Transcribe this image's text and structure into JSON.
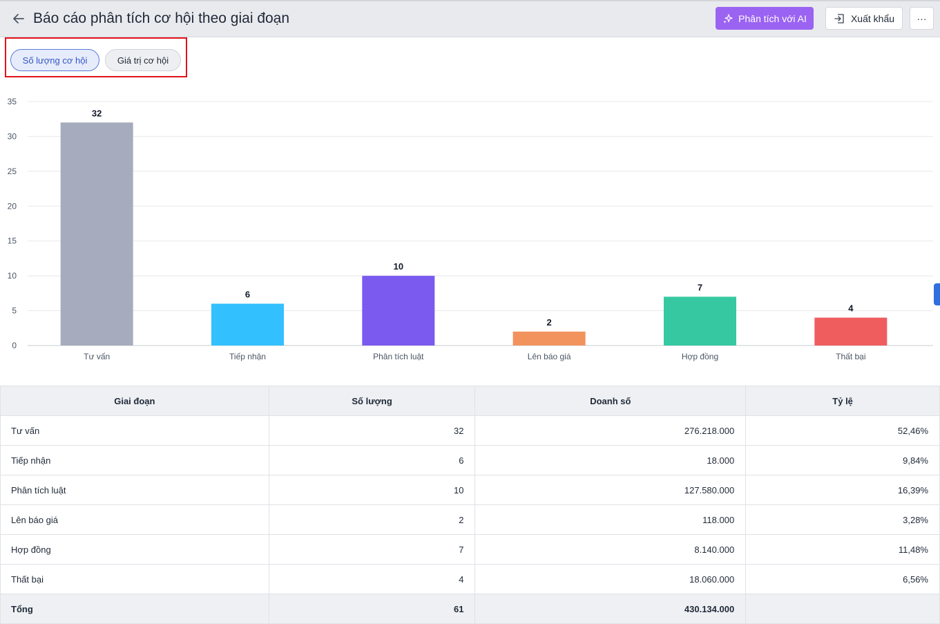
{
  "header": {
    "title": "Báo cáo phân tích cơ hội theo giai đoạn",
    "ai_button": "Phân tích với AI",
    "export_button": "Xuất khẩu",
    "more_button": "···"
  },
  "toggles": {
    "count": "Số lượng cơ hội",
    "value": "Giá trị cơ hội"
  },
  "chart_data": {
    "type": "bar",
    "categories": [
      "Tư vấn",
      "Tiếp nhận",
      "Phân tích luật",
      "Lên báo giá",
      "Hợp đồng",
      "Thất bại"
    ],
    "values": [
      32,
      6,
      10,
      2,
      7,
      4
    ],
    "colors": [
      "#a6acbd",
      "#33c0fe",
      "#7b5aef",
      "#f2935e",
      "#36c8a1",
      "#ef5d5f"
    ],
    "ylim": [
      0,
      35
    ],
    "yticks": [
      0,
      5,
      10,
      15,
      20,
      25,
      30,
      35
    ],
    "grid": true
  },
  "table": {
    "headers": [
      "Giai đoạn",
      "Số lượng",
      "Doanh số",
      "Tỷ lệ"
    ],
    "rows": [
      [
        "Tư vấn",
        "32",
        "276.218.000",
        "52,46%"
      ],
      [
        "Tiếp nhận",
        "6",
        "18.000",
        "9,84%"
      ],
      [
        "Phân tích luật",
        "10",
        "127.580.000",
        "16,39%"
      ],
      [
        "Lên báo giá",
        "2",
        "118.000",
        "3,28%"
      ],
      [
        "Hợp đồng",
        "7",
        "8.140.000",
        "11,48%"
      ],
      [
        "Thất bại",
        "4",
        "18.060.000",
        "6,56%"
      ]
    ],
    "total": [
      "Tổng",
      "61",
      "430.134.000",
      ""
    ]
  }
}
